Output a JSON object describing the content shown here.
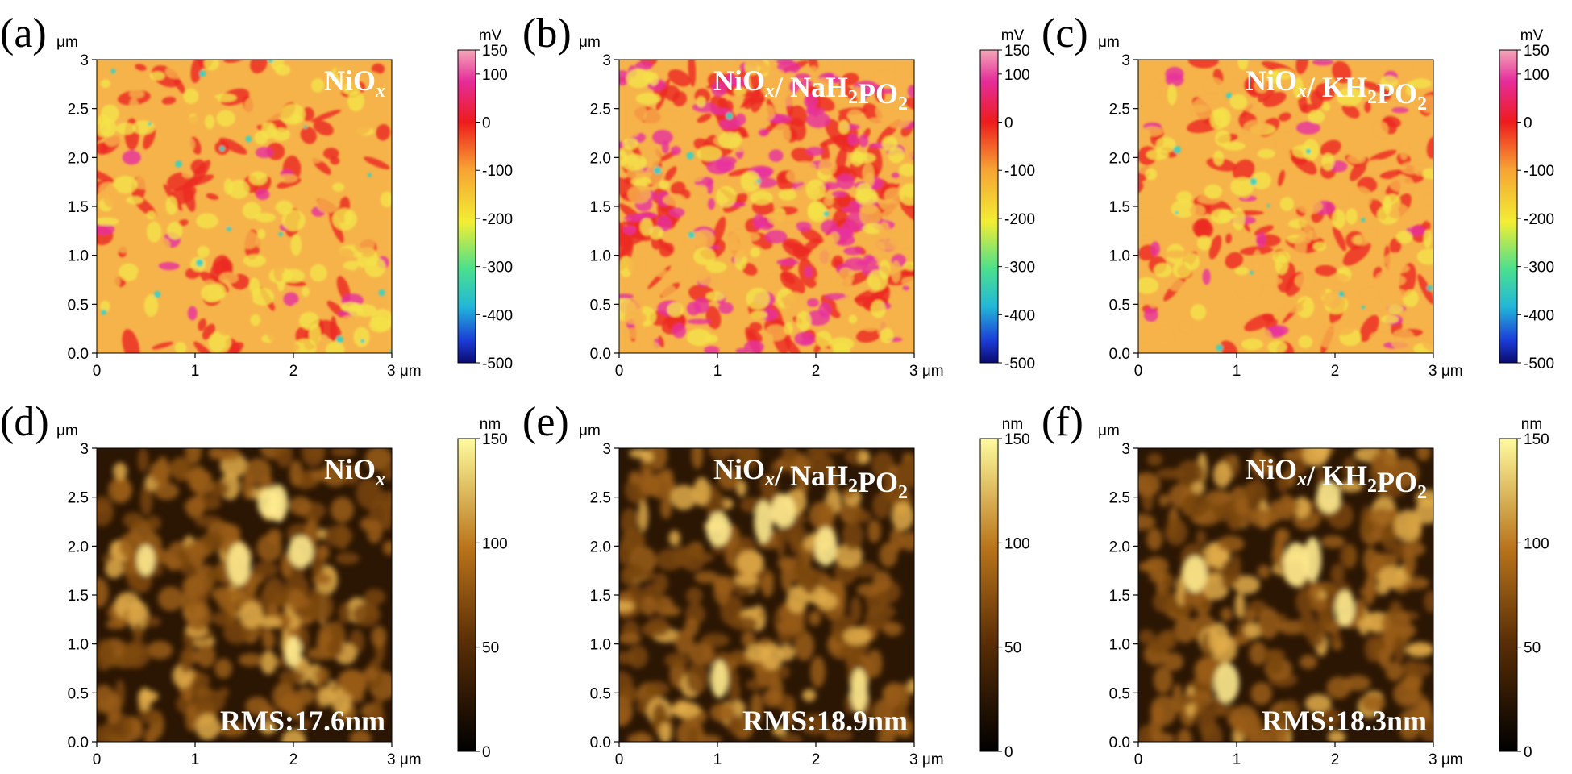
{
  "axis_unit": "μm",
  "axis_ticks": [
    "0.0",
    "0.5",
    "1.0",
    "1.5",
    "2.0",
    "2.5",
    "3"
  ],
  "x_ticks": [
    "0",
    "1",
    "2",
    "3 μm"
  ],
  "colors": {
    "kpfm_base": "#f6b34a",
    "kpfm_red": "#ec2d24",
    "kpfm_magenta": "#e7319f",
    "kpfm_yellow": "#f4e34a",
    "kpfm_cyan": "#37d1c3",
    "afm_dark": "#2b1604",
    "afm_mid": "#7a4610",
    "afm_bright": "#ffeb8f"
  },
  "panels": [
    {
      "id": "a",
      "label": "(a)",
      "type": "kpfm",
      "sample_main": "NiO",
      "sample_sub": "x",
      "sample_rest": "",
      "rms": "",
      "red_level": 0.35,
      "magenta_level": 0.05,
      "cyan_level": 0.06
    },
    {
      "id": "b",
      "label": "(b)",
      "type": "kpfm",
      "sample_main": "NiO",
      "sample_sub": "x",
      "sample_rest": "/ NaH",
      "sample_sub2": "2",
      "sample_rest2": "PO",
      "sample_sub3": "2",
      "rms": "",
      "red_level": 0.75,
      "magenta_level": 0.45,
      "cyan_level": 0.02
    },
    {
      "id": "c",
      "label": "(c)",
      "type": "kpfm",
      "sample_main": "NiO",
      "sample_sub": "x",
      "sample_rest": "/ KH",
      "sample_sub2": "2",
      "sample_rest2": "PO",
      "sample_sub3": "2",
      "rms": "",
      "red_level": 0.45,
      "magenta_level": 0.07,
      "cyan_level": 0.04
    },
    {
      "id": "d",
      "label": "(d)",
      "type": "afm",
      "sample_main": "NiO",
      "sample_sub": "x",
      "sample_rest": "",
      "rms": "RMS:17.6nm"
    },
    {
      "id": "e",
      "label": "(e)",
      "type": "afm",
      "sample_main": "NiO",
      "sample_sub": "x",
      "sample_rest": "/ NaH",
      "sample_sub2": "2",
      "sample_rest2": "PO",
      "sample_sub3": "2",
      "rms": "RMS:18.9nm"
    },
    {
      "id": "f",
      "label": "(f)",
      "type": "afm",
      "sample_main": "NiO",
      "sample_sub": "x",
      "sample_rest": "/ KH",
      "sample_sub2": "2",
      "sample_rest2": "PO",
      "sample_sub3": "2",
      "rms": "RMS:18.3nm"
    }
  ],
  "colorbars": {
    "kpfm": {
      "unit": "mV",
      "ticks": [
        "150",
        "100",
        "0",
        "-100",
        "-200",
        "-300",
        "-400",
        "-500"
      ],
      "min": -500,
      "max": 150
    },
    "afm": {
      "unit": "nm",
      "ticks": [
        "150",
        "100",
        "50",
        "0"
      ],
      "min": 0,
      "max": 150
    }
  }
}
